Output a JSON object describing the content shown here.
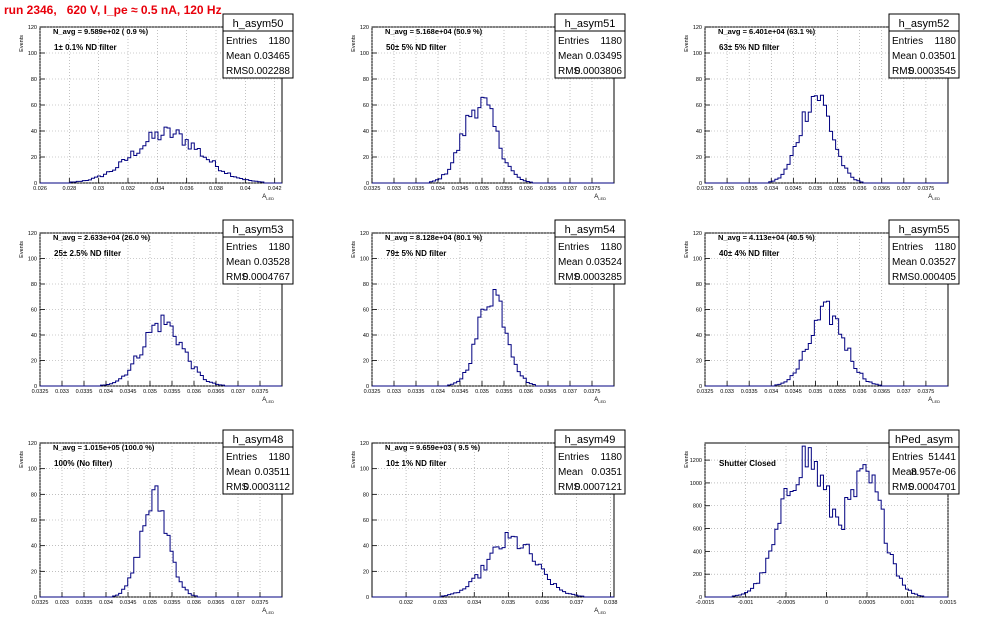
{
  "run_title": "run 2346,   620 V, I_pe ≈ 0.5 nA, 120 Hz",
  "stats_labels": {
    "entries": "Entries",
    "mean": "Mean",
    "rms": "RMS"
  },
  "colors": {
    "histogram": "#000080",
    "annotation": "#ff00ff",
    "title": "#e8000b",
    "grid": "#999999"
  },
  "chart_data": [
    {
      "type": "bar",
      "name": "h_asym50",
      "ylabel": "Events",
      "xlabel": "A_LED",
      "ylim": [
        0,
        120
      ],
      "xlim": [
        0.026,
        0.0425
      ],
      "xticks": [
        0.026,
        0.028,
        0.03,
        0.032,
        0.034,
        0.036,
        0.038,
        0.04,
        0.042
      ],
      "xtick_labels": [
        "0.026",
        "0.028",
        "0.03",
        "0.032",
        "0.034",
        "0.036",
        "0.038",
        "0.04",
        "0.042"
      ],
      "yticks": [
        0,
        20,
        40,
        60,
        80,
        100,
        120
      ],
      "navg": "N_avg = 9.589e+02 ( 0.9 %)",
      "filter": "1± 0.1% ND filter",
      "stats": {
        "entries": "1180",
        "mean": "0.03465",
        "rms": "0.002288"
      },
      "peaks": [
        {
          "mu": 0.0347,
          "sigma": 0.0023,
          "amp": 38
        }
      ]
    },
    {
      "type": "bar",
      "name": "h_asym51",
      "ylabel": "Events",
      "xlabel": "A_LED",
      "ylim": [
        0,
        120
      ],
      "xlim": [
        0.0325,
        0.038
      ],
      "xticks": [
        0.0325,
        0.033,
        0.0335,
        0.034,
        0.0345,
        0.035,
        0.0355,
        0.036,
        0.0365,
        0.037,
        0.0375
      ],
      "xtick_labels": [
        "0.0325",
        "0.033",
        "0.0335",
        "0.034",
        "0.0345",
        "0.035",
        "0.0355",
        "0.036",
        "0.0365",
        "0.037",
        "0.0375"
      ],
      "yticks": [
        0,
        20,
        40,
        60,
        80,
        100,
        120
      ],
      "navg": "N_avg = 5.168e+04 (50.9 %)",
      "filter": "50± 5% ND filter",
      "stats": {
        "entries": "1180",
        "mean": "0.03495",
        "rms": "0.0003806"
      },
      "peaks": [
        {
          "mu": 0.03495,
          "sigma": 0.00038,
          "amp": 62
        }
      ]
    },
    {
      "type": "bar",
      "name": "h_asym52",
      "ylabel": "Events",
      "xlabel": "A_LED",
      "ylim": [
        0,
        120
      ],
      "xlim": [
        0.0325,
        0.038
      ],
      "xticks": [
        0.0325,
        0.033,
        0.0335,
        0.034,
        0.0345,
        0.035,
        0.0355,
        0.036,
        0.0365,
        0.037,
        0.0375
      ],
      "xtick_labels": [
        "0.0325",
        "0.033",
        "0.0335",
        "0.034",
        "0.0345",
        "0.035",
        "0.0355",
        "0.036",
        "0.0365",
        "0.037",
        "0.0375"
      ],
      "yticks": [
        0,
        20,
        40,
        60,
        80,
        100,
        120
      ],
      "navg": "N_avg = 6.401e+04 (63.1 %)",
      "filter": "63± 5% ND filter",
      "stats": {
        "entries": "1180",
        "mean": "0.03501",
        "rms": "0.0003545"
      },
      "peaks": [
        {
          "mu": 0.03501,
          "sigma": 0.00035,
          "amp": 68
        }
      ]
    },
    {
      "type": "bar",
      "name": "h_asym53",
      "ylabel": "Events",
      "xlabel": "A_LED",
      "ylim": [
        0,
        120
      ],
      "xlim": [
        0.0325,
        0.038
      ],
      "xticks": [
        0.0325,
        0.033,
        0.0335,
        0.034,
        0.0345,
        0.035,
        0.0355,
        0.036,
        0.0365,
        0.037,
        0.0375
      ],
      "xtick_labels": [
        "0.0325",
        "0.033",
        "0.0335",
        "0.034",
        "0.0345",
        "0.035",
        "0.0355",
        "0.036",
        "0.0365",
        "0.037",
        "0.0375"
      ],
      "yticks": [
        0,
        20,
        40,
        60,
        80,
        100,
        120
      ],
      "navg": "N_avg = 2.633e+04 (26.0 %)",
      "filter": "25± 2.5% ND filter",
      "stats": {
        "entries": "1180",
        "mean": "0.03528",
        "rms": "0.0004767"
      },
      "peaks": [
        {
          "mu": 0.03528,
          "sigma": 0.00046,
          "amp": 50
        }
      ]
    },
    {
      "type": "bar",
      "name": "h_asym54",
      "ylabel": "Events",
      "xlabel": "A_LED",
      "ylim": [
        0,
        120
      ],
      "xlim": [
        0.0325,
        0.038
      ],
      "xticks": [
        0.0325,
        0.033,
        0.0335,
        0.034,
        0.0345,
        0.035,
        0.0355,
        0.036,
        0.0365,
        0.037,
        0.0375
      ],
      "xtick_labels": [
        "0.0325",
        "0.033",
        "0.0335",
        "0.034",
        "0.0345",
        "0.035",
        "0.0355",
        "0.036",
        "0.0365",
        "0.037",
        "0.0375"
      ],
      "yticks": [
        0,
        20,
        40,
        60,
        80,
        100,
        120
      ],
      "navg": "N_avg = 8.128e+04 (80.1 %)",
      "filter": "79± 5% ND filter",
      "stats": {
        "entries": "1180",
        "mean": "0.03524",
        "rms": "0.0003285"
      },
      "peaks": [
        {
          "mu": 0.03524,
          "sigma": 0.00032,
          "amp": 74
        }
      ]
    },
    {
      "type": "bar",
      "name": "h_asym55",
      "ylabel": "Events",
      "xlabel": "A_LED",
      "ylim": [
        0,
        120
      ],
      "xlim": [
        0.0325,
        0.038
      ],
      "xticks": [
        0.0325,
        0.033,
        0.0335,
        0.034,
        0.0345,
        0.035,
        0.0355,
        0.036,
        0.0365,
        0.037,
        0.0375
      ],
      "xtick_labels": [
        "0.0325",
        "0.033",
        "0.0335",
        "0.034",
        "0.0345",
        "0.035",
        "0.0355",
        "0.036",
        "0.0365",
        "0.037",
        "0.0375"
      ],
      "yticks": [
        0,
        20,
        40,
        60,
        80,
        100,
        120
      ],
      "navg": "N_avg = 4.113e+04 (40.5 %)",
      "filter": "40± 4% ND filter",
      "stats": {
        "entries": "1180",
        "mean": "0.03527",
        "rms": "0.000405"
      },
      "peaks": [
        {
          "mu": 0.03527,
          "sigma": 0.0004,
          "amp": 57
        }
      ]
    },
    {
      "type": "bar",
      "name": "h_asym48",
      "ylabel": "Events",
      "xlabel": "A_LED",
      "ylim": [
        0,
        120
      ],
      "xlim": [
        0.0325,
        0.038
      ],
      "xticks": [
        0.0325,
        0.033,
        0.0335,
        0.034,
        0.0345,
        0.035,
        0.0355,
        0.036,
        0.0365,
        0.037,
        0.0375
      ],
      "xtick_labels": [
        "0.0325",
        "0.033",
        "0.0335",
        "0.034",
        "0.0345",
        "0.035",
        "0.0355",
        "0.036",
        "0.0365",
        "0.037",
        "0.0375"
      ],
      "yticks": [
        0,
        20,
        40,
        60,
        80,
        100,
        120
      ],
      "navg": "N_avg = 1.015e+05 (100.0 %)",
      "filter": "100% (No filter)",
      "stats": {
        "entries": "1180",
        "mean": "0.03511",
        "rms": "0.0003112"
      },
      "peaks": [
        {
          "mu": 0.03511,
          "sigma": 0.00031,
          "amp": 76
        }
      ]
    },
    {
      "type": "bar",
      "name": "h_asym49",
      "ylabel": "Events",
      "xlabel": "A_LED",
      "ylim": [
        0,
        120
      ],
      "xlim": [
        0.031,
        0.0381
      ],
      "xticks": [
        0.032,
        0.033,
        0.034,
        0.035,
        0.036,
        0.037,
        0.038
      ],
      "xtick_labels": [
        "0.032",
        "0.033",
        "0.034",
        "0.035",
        "0.036",
        "0.037",
        "0.038"
      ],
      "yticks": [
        0,
        20,
        40,
        60,
        80,
        100,
        120
      ],
      "navg": "N_avg = 9.659e+03 ( 9.5 %)",
      "filter": "10± 1% ND filter",
      "stats": {
        "entries": "1180",
        "mean": "0.0351",
        "rms": "0.0007121"
      },
      "peaks": [
        {
          "mu": 0.0351,
          "sigma": 0.00071,
          "amp": 44
        }
      ]
    },
    {
      "type": "bar",
      "name": "hPed_asym",
      "ylabel": "Events",
      "xlabel": "",
      "ylim": [
        0,
        1350
      ],
      "xlim": [
        -0.0015,
        0.0015
      ],
      "xticks": [
        -0.0015,
        -0.001,
        -0.0005,
        0,
        0.0005,
        0.001,
        0.0015
      ],
      "xtick_labels": [
        "-0.0015",
        "-0.001",
        "-0.0005",
        "0",
        "0.0005",
        "0.001",
        "0.0015"
      ],
      "yticks": [
        0,
        200,
        400,
        600,
        800,
        1000,
        1200
      ],
      "navg": "",
      "filter": "Shutter Closed",
      "stats": {
        "entries": "51441",
        "mean": "8.957e-06",
        "rms": "0.0004701"
      },
      "peaks": [
        {
          "mu": -0.00026,
          "sigma": 0.00028,
          "amp": 1230
        },
        {
          "mu": 0.0005,
          "sigma": 0.00022,
          "amp": 990
        }
      ]
    }
  ]
}
